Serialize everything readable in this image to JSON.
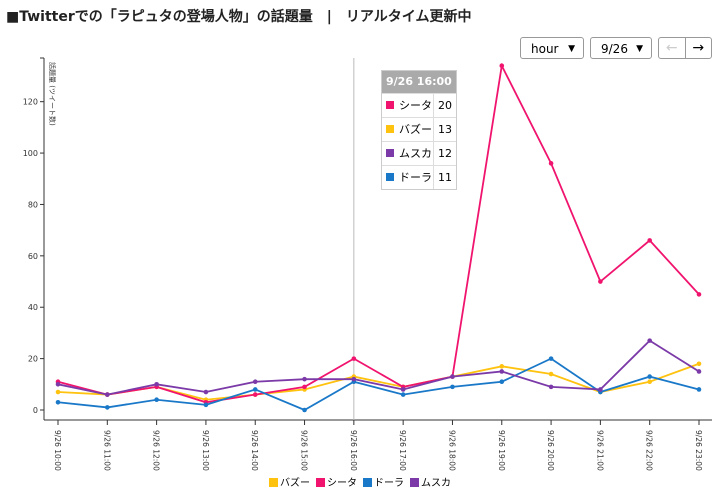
{
  "title": "■Twitterでの「ラピュタの登場人物」の話題量　|　リアルタイム更新中",
  "controls": {
    "interval": "hour",
    "date": "9/26",
    "prev": "←",
    "next": "→",
    "dropdown_arrow": "▼"
  },
  "tooltip": {
    "header": "9/26 16:00",
    "rows": [
      {
        "name": "シータ",
        "value": "20",
        "color": "#f0146e"
      },
      {
        "name": "バズー",
        "value": "13",
        "color": "#ffc20e"
      },
      {
        "name": "ムスカ",
        "value": "12",
        "color": "#7b3aa8"
      },
      {
        "name": "ドーラ",
        "value": "11",
        "color": "#1a78c8"
      }
    ]
  },
  "chart_data": {
    "type": "line",
    "ylabel": "話題量 (ツイート数)",
    "ylim": [
      0,
      137
    ],
    "yticks": [
      0,
      20,
      40,
      60,
      80,
      100,
      120
    ],
    "hover_index": 6,
    "categories": [
      "9/26 10:00",
      "9/26 11:00",
      "9/26 12:00",
      "9/26 13:00",
      "9/26 14:00",
      "9/26 15:00",
      "9/26 16:00",
      "9/26 17:00",
      "9/26 18:00",
      "9/26 19:00",
      "9/26 20:00",
      "9/26 21:00",
      "9/26 22:00",
      "9/26 23:00"
    ],
    "series": [
      {
        "name": "バズー",
        "color": "#ffc20e",
        "values": [
          7,
          6,
          9,
          4,
          6,
          8,
          13,
          9,
          13,
          17,
          14,
          7,
          11,
          18
        ]
      },
      {
        "name": "シータ",
        "color": "#f0146e",
        "values": [
          11,
          6,
          9,
          3,
          6,
          9,
          20,
          9,
          13,
          134,
          96,
          50,
          66,
          45
        ]
      },
      {
        "name": "ドーラ",
        "color": "#1a78c8",
        "values": [
          3,
          1,
          4,
          2,
          8,
          0,
          11,
          6,
          9,
          11,
          20,
          7,
          13,
          8
        ]
      },
      {
        "name": "ムスカ",
        "color": "#7b3aa8",
        "values": [
          10,
          6,
          10,
          7,
          11,
          12,
          12,
          8,
          13,
          15,
          9,
          8,
          27,
          15
        ]
      }
    ],
    "legend": "bottom"
  }
}
